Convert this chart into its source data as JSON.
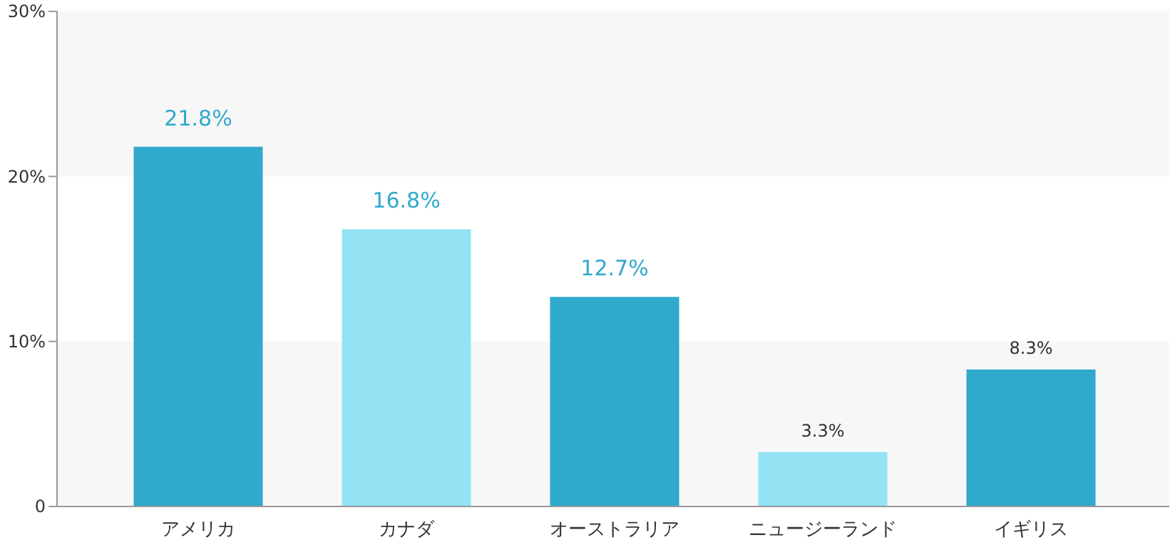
{
  "chart_data": {
    "type": "bar",
    "categories": [
      "アメリカ",
      "カナダ",
      "オーストラリア",
      "ニュージーランド",
      "イギリス"
    ],
    "values": [
      21.8,
      16.8,
      12.7,
      3.3,
      8.3
    ],
    "colors": [
      "#2fa9cc",
      "#94e3f5",
      "#2fa9cc",
      "#94e3f5",
      "#2fa9cc"
    ],
    "value_labels": [
      "21.8%",
      "16.8%",
      "12.7%",
      "3.3%",
      "8.3%"
    ],
    "ylim": [
      0,
      30
    ],
    "yticks": [
      {
        "value": 0,
        "label": "0"
      },
      {
        "value": 10,
        "label": "10%"
      },
      {
        "value": 20,
        "label": "20%"
      },
      {
        "value": 30,
        "label": "30%"
      }
    ],
    "bands": [
      {
        "axis": "y",
        "from": 0,
        "to": 10,
        "color": "#f7f7f7"
      },
      {
        "axis": "y",
        "from": 20,
        "to": 30,
        "color": "#f7f7f7"
      }
    ]
  }
}
